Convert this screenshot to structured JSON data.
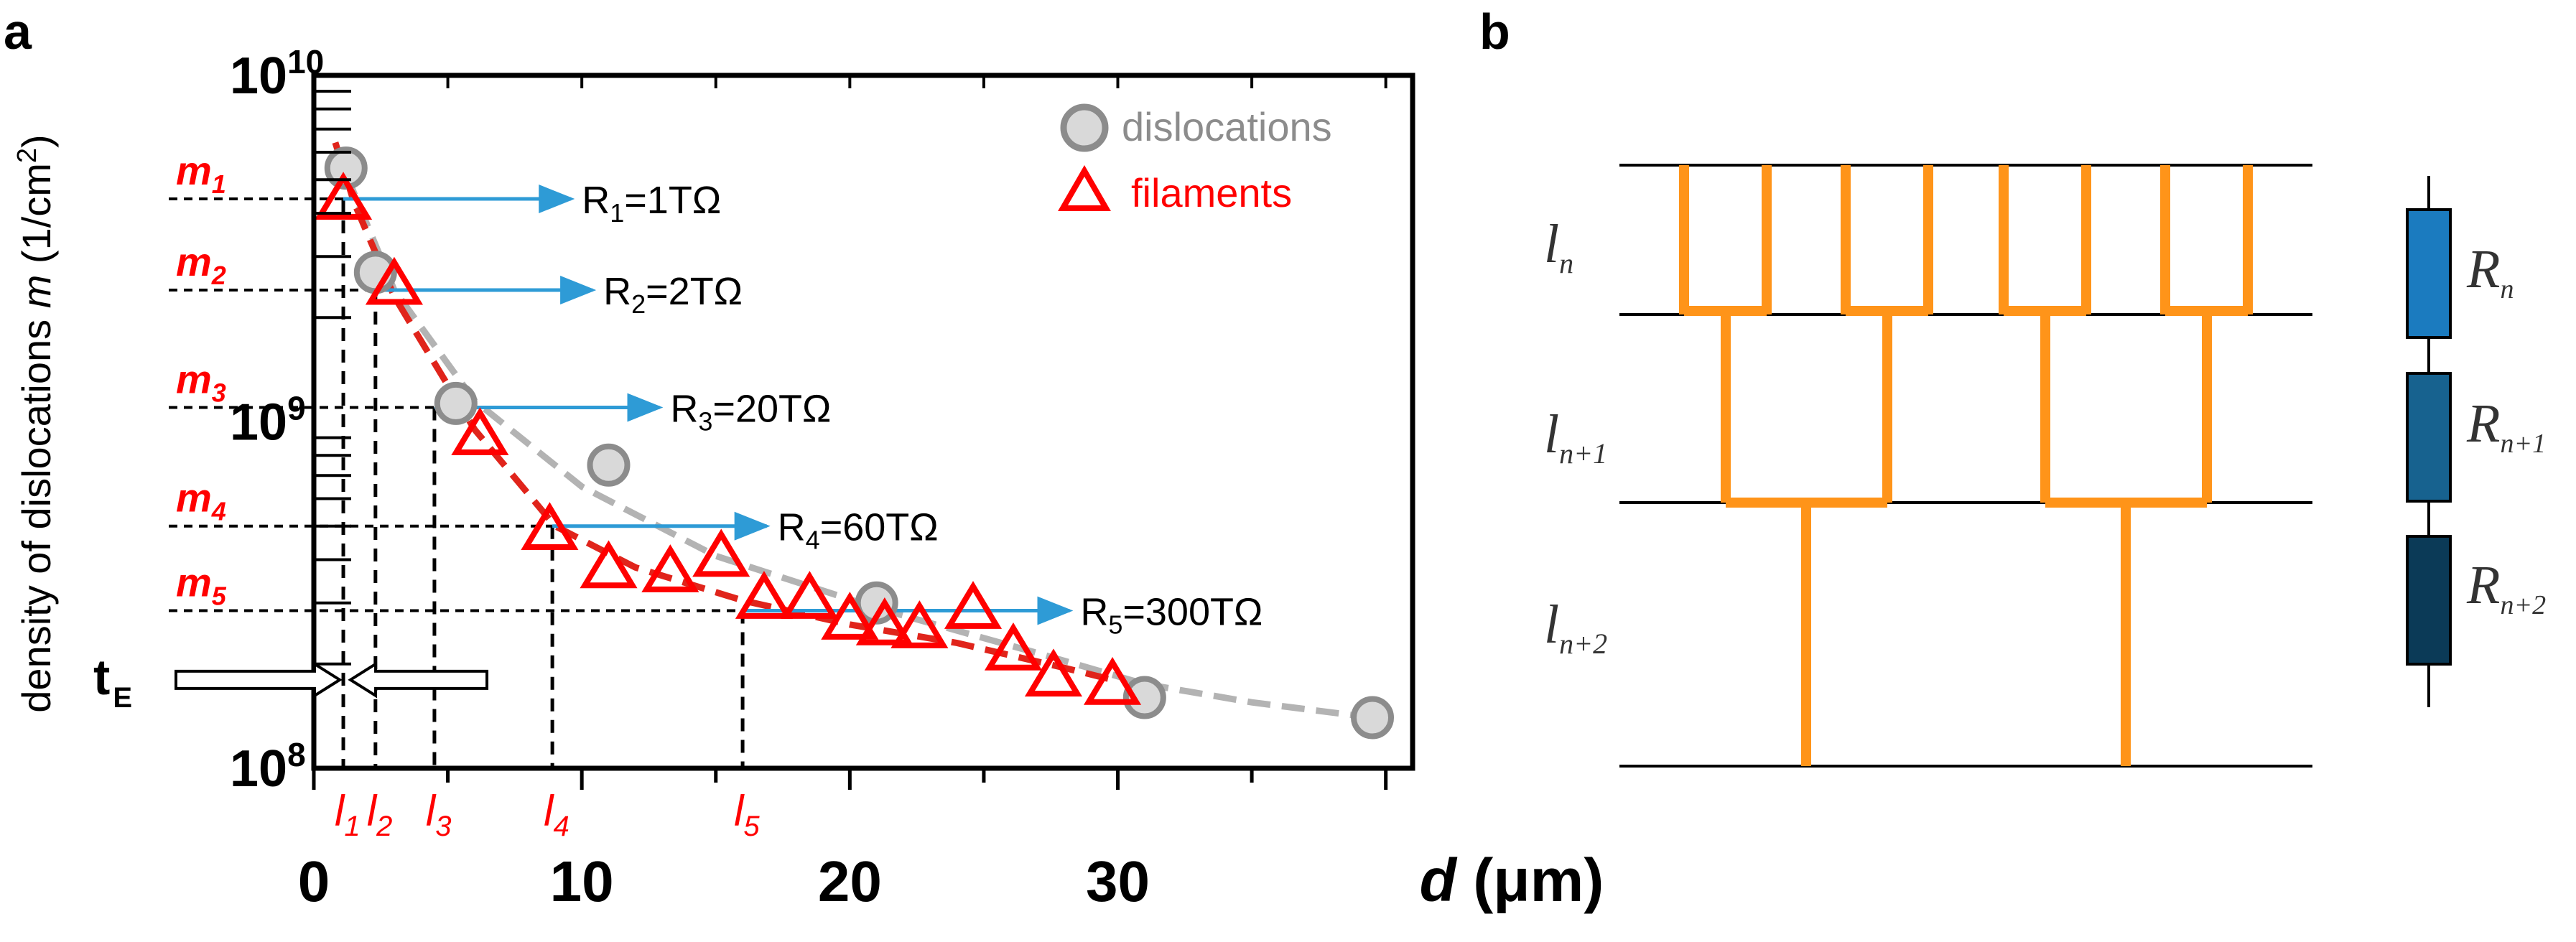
{
  "panel_a_label": "a",
  "panel_b_label": "b",
  "chart_data": {
    "type": "scatter",
    "y_scale": "log",
    "xlim": [
      0,
      41
    ],
    "ylim": [
      100000000.0,
      10000000000.0
    ],
    "xticks": [
      0,
      10,
      20,
      30
    ],
    "xtick_labels": [
      "0",
      "10",
      "20",
      "30"
    ],
    "ytick_labels": [
      {
        "value": 10000000000.0,
        "base": "10",
        "exp": "10"
      },
      {
        "value": 1000000000.0,
        "base": "10",
        "exp": "9"
      },
      {
        "value": 100000000.0,
        "base": "10",
        "exp": "8"
      }
    ],
    "ylabel_prefix": "density of dislocations ",
    "ylabel_var": "m",
    "ylabel_unit_pre": " (1/cm",
    "ylabel_unit_sup": "2",
    "ylabel_unit_post": ")",
    "xlabel_var": "d",
    "xlabel_unit": " (μm)",
    "legend": {
      "dislocations": "dislocations",
      "filaments": "filaments"
    },
    "series": [
      {
        "name": "dislocations",
        "color": "#bfbfbf",
        "x": [
          1.2,
          2.3,
          5.3,
          11.0,
          21.0,
          31.0,
          39.5
        ],
        "y": [
          5400000000.0,
          2700000000.0,
          1130000000.0,
          750000000.0,
          300000000.0,
          160000000.0,
          140000000.0
        ]
      },
      {
        "name": "filaments",
        "color": "#ff0000",
        "x": [
          1.1,
          3.0,
          6.2,
          8.8,
          11.0,
          13.3,
          15.2,
          16.8,
          18.5,
          20.0,
          21.3,
          22.6,
          24.6,
          26.1,
          27.6,
          29.8
        ],
        "y": [
          4400000000.0,
          2500000000.0,
          920000000.0,
          490000000.0,
          380000000.0,
          370000000.0,
          410000000.0,
          310000000.0,
          310000000.0,
          270000000.0,
          260000000.0,
          255000000.0,
          290000000.0,
          220000000.0,
          185000000.0,
          175000000.0
        ]
      }
    ],
    "trend_dislocations": {
      "x": [
        1.2,
        3.0,
        6.0,
        10.0,
        15.0,
        21.0,
        27.0,
        31.0,
        35.0,
        39.5
      ],
      "y": [
        5200000000.0,
        2400000000.0,
        1150000000.0,
        650000000.0,
        410000000.0,
        290000000.0,
        215000000.0,
        175000000.0,
        155000000.0,
        140000000.0
      ]
    },
    "trend_filaments": {
      "x": [
        0.8,
        1.5,
        3.0,
        6.0,
        9.0,
        12.0,
        16.0,
        20.0,
        24.0,
        28.0,
        29.8
      ],
      "y": [
        6400000000.0,
        4300000000.0,
        2300000000.0,
        950000000.0,
        500000000.0,
        380000000.0,
        305000000.0,
        260000000.0,
        230000000.0,
        195000000.0,
        180000000.0
      ]
    },
    "levels": [
      {
        "m_label": "m",
        "m_sub": "1",
        "l_label": "l",
        "l_sub": "1",
        "m_value": 4400000000.0,
        "l_value": 1.1,
        "arrow_to": 9.6,
        "r_label": "R",
        "r_sub": "1",
        "r_value": "=1TΩ"
      },
      {
        "m_label": "m",
        "m_sub": "2",
        "l_label": "l",
        "l_sub": "2",
        "m_value": 2400000000.0,
        "l_value": 2.3,
        "arrow_to": 10.4,
        "r_label": "R",
        "r_sub": "2",
        "r_value": "=2TΩ"
      },
      {
        "m_label": "m",
        "m_sub": "3",
        "l_label": "l",
        "l_sub": "3",
        "m_value": 1100000000.0,
        "l_value": 4.5,
        "arrow_to": 12.9,
        "r_label": "R",
        "r_sub": "3",
        "r_value": "=20TΩ"
      },
      {
        "m_label": "m",
        "m_sub": "4",
        "l_label": "l",
        "l_sub": "4",
        "m_value": 500000000.0,
        "l_value": 8.9,
        "arrow_to": 16.9,
        "r_label": "R",
        "r_sub": "4",
        "r_value": "=60TΩ"
      },
      {
        "m_label": "m",
        "m_sub": "5",
        "l_label": "l",
        "l_sub": "5",
        "m_value": 285000000.0,
        "l_value": 16.0,
        "arrow_to": 28.2,
        "r_label": "R",
        "r_sub": "5",
        "r_value": "=300TΩ"
      }
    ],
    "te": {
      "label": "t",
      "sub": "E",
      "y": 180000000.0,
      "x": 1.1
    }
  },
  "panel_b": {
    "layers": [
      {
        "label": "l",
        "sub": "n"
      },
      {
        "label": "l",
        "sub": "n+1"
      },
      {
        "label": "l",
        "sub": "n+2"
      }
    ],
    "resistors": [
      {
        "label": "R",
        "sub": "n",
        "color": "#1b7bbf"
      },
      {
        "label": "R",
        "sub": "n+1",
        "color": "#17628f"
      },
      {
        "label": "R",
        "sub": "n+2",
        "color": "#0b3a57"
      }
    ],
    "tree_color": "#ff9419"
  }
}
